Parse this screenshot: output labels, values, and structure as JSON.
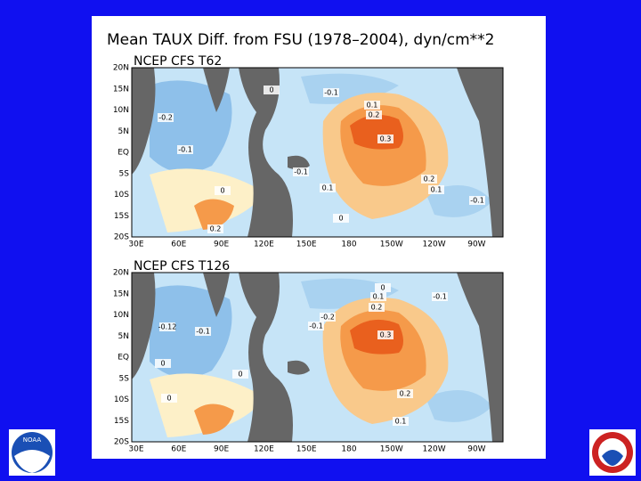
{
  "title": "Mean TAUX Diff. from FSU (1978–2004), dyn/cm**2",
  "lat_labels": [
    "20N",
    "15N",
    "10N",
    "5N",
    "EQ",
    "5S",
    "10S",
    "15S",
    "20S"
  ],
  "lon_labels": [
    "30E",
    "60E",
    "90E",
    "120E",
    "150E",
    "180",
    "150W",
    "120W",
    "90W"
  ],
  "panels": [
    {
      "title": "NCEP CFS T62",
      "contour_labels": [
        "0",
        "-0.1",
        "-0.2",
        "0.1",
        "0.2",
        "0.3",
        "-0.1",
        "-0.1",
        "0.2",
        "0.1",
        "0.1",
        "0",
        "-0.1",
        "0",
        "0.2"
      ]
    },
    {
      "title": "NCEP CFS T126",
      "contour_labels": [
        "0",
        "-0.1",
        "0.1",
        "0.2",
        "-0.2",
        "-0.1",
        "-0.12",
        "-0.1",
        "0.3",
        "0",
        "0",
        "0.2",
        "0.1",
        "0"
      ]
    }
  ],
  "logo_left": "NOAA"
}
